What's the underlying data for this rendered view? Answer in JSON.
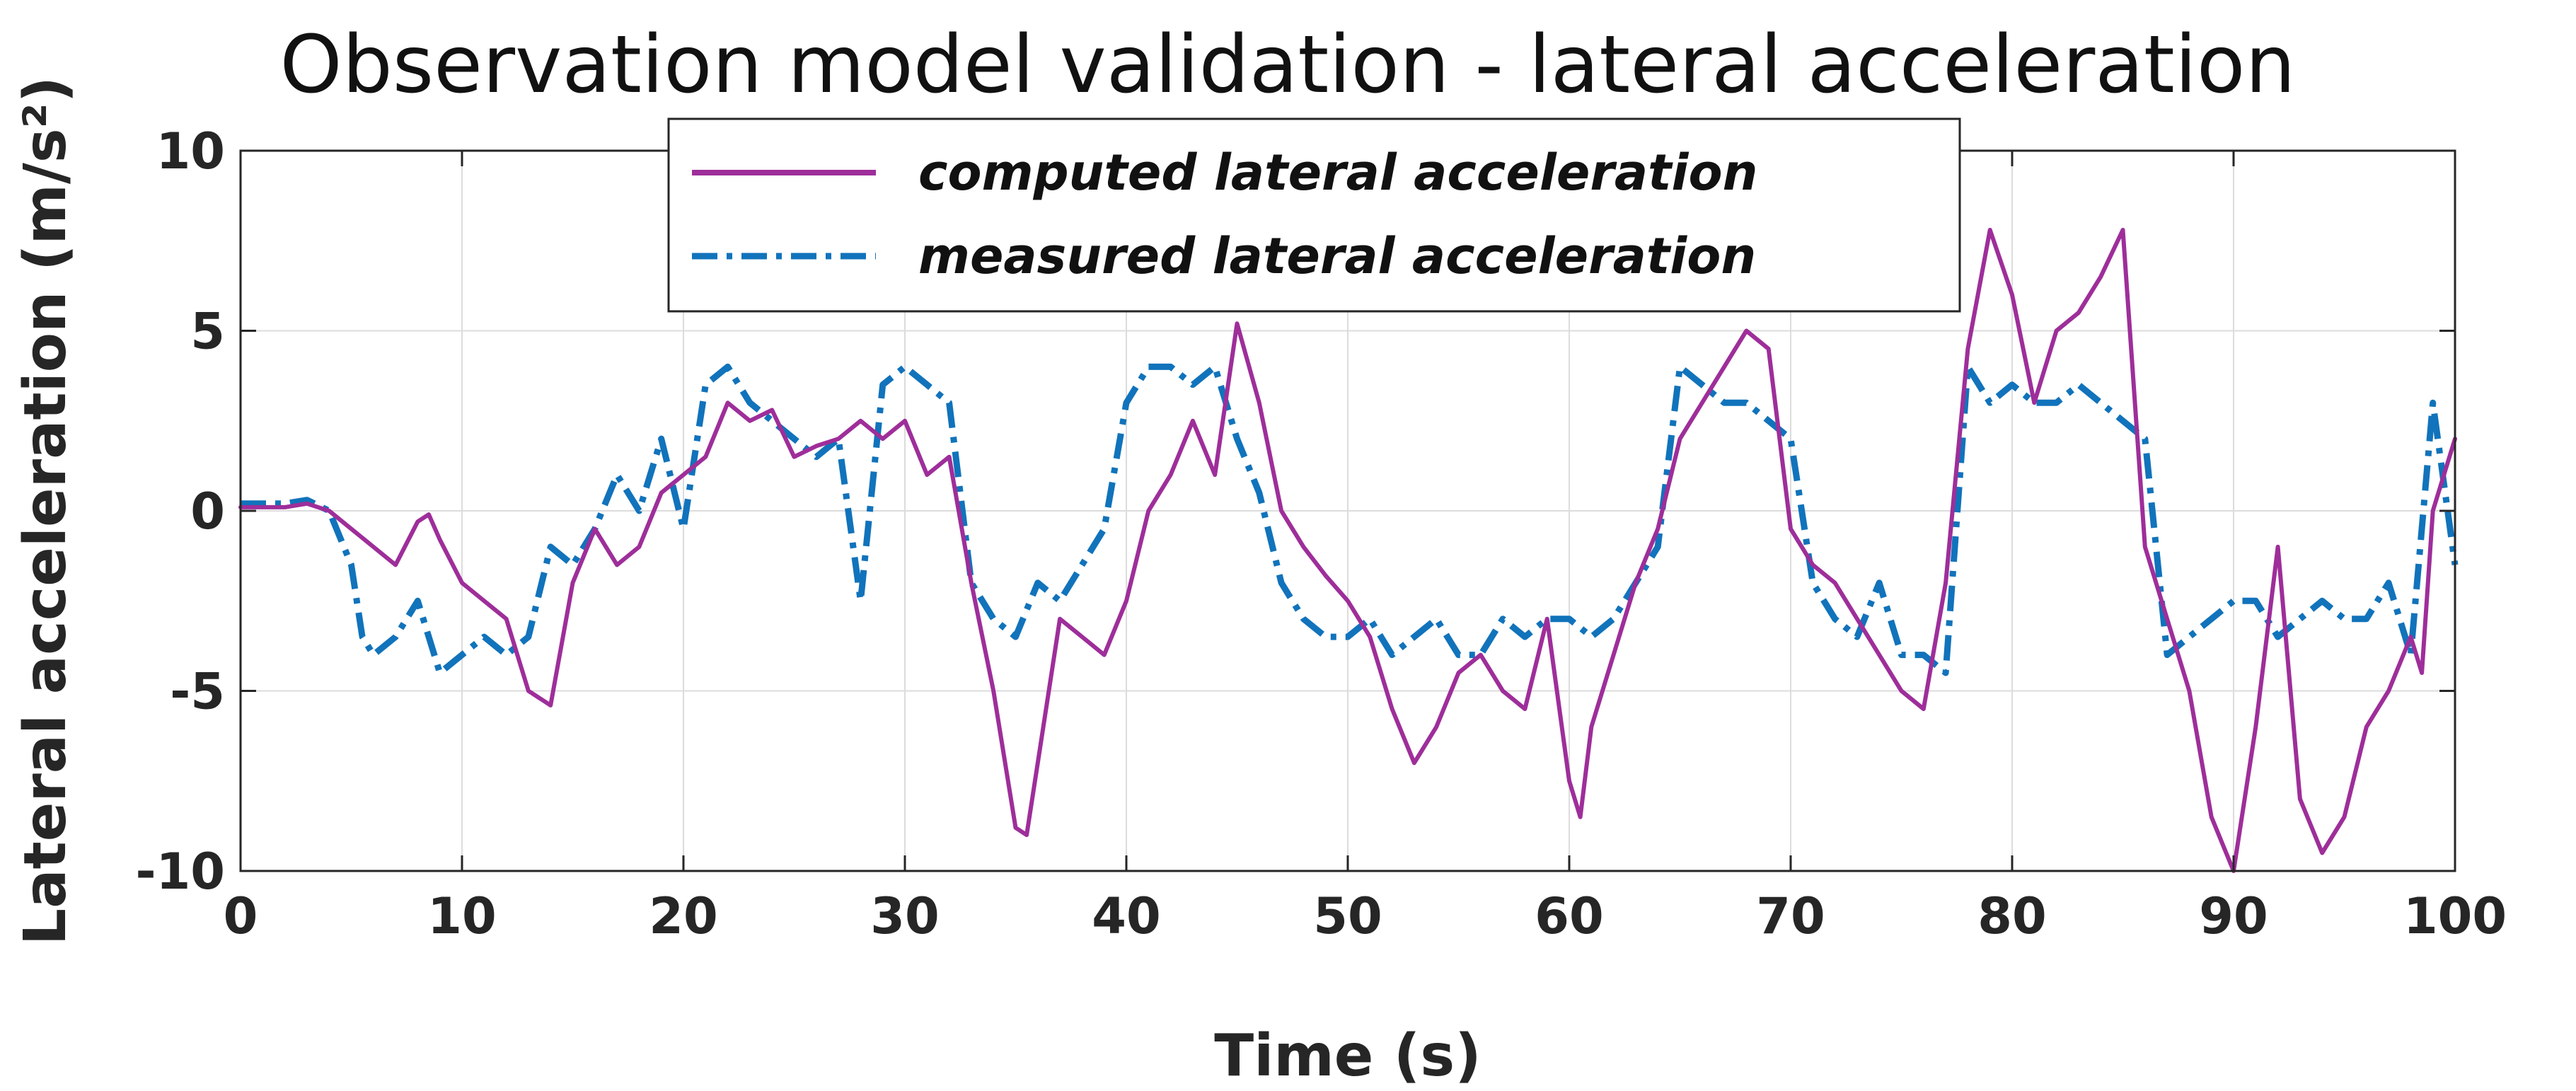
{
  "chart_data": {
    "type": "line",
    "title": "Observation model validation - lateral acceleration",
    "xlabel": "Time (s)",
    "ylabel": "Lateral acceleration (m/s²)",
    "xlim": [
      0,
      100
    ],
    "ylim": [
      -10,
      10
    ],
    "xticks": [
      0,
      10,
      20,
      30,
      40,
      50,
      60,
      70,
      80,
      90,
      100
    ],
    "yticks": [
      10,
      5,
      0,
      -5,
      -10
    ],
    "xtick_labels": [
      "0",
      "10",
      "20",
      "30",
      "40",
      "50",
      "60",
      "70",
      "80",
      "90",
      "100"
    ],
    "ytick_labels": [
      "10",
      "5",
      "0",
      "-5",
      "-10"
    ],
    "grid": true,
    "legend_position": "top-center",
    "series": [
      {
        "name": "computed lateral acceleration",
        "color": "#9e2e9a",
        "style": "solid",
        "x": [
          0,
          2,
          3,
          4,
          5,
          6,
          7,
          8,
          8.5,
          9,
          10,
          11,
          12,
          13,
          14,
          15,
          16,
          17,
          18,
          19,
          20,
          21,
          22,
          23,
          24,
          25,
          26,
          27,
          28,
          29,
          30,
          31,
          32,
          33,
          34,
          35,
          35.5,
          36,
          37,
          38,
          39,
          40,
          41,
          42,
          43,
          44,
          45,
          46,
          47,
          48,
          49,
          50,
          51,
          52,
          53,
          54,
          55,
          56,
          57,
          58,
          59,
          60,
          60.5,
          61,
          62,
          63,
          64,
          65,
          66,
          67,
          68,
          69,
          70,
          71,
          72,
          73,
          74,
          75,
          76,
          77,
          78,
          79,
          80,
          81,
          82,
          83,
          84,
          85,
          86,
          87,
          88,
          89,
          90,
          91,
          92,
          93,
          94,
          95,
          96,
          97,
          98,
          98.5,
          99,
          100
        ],
        "y": [
          0.1,
          0.1,
          0.2,
          0.0,
          -0.5,
          -1.0,
          -1.5,
          -0.3,
          -0.1,
          -0.8,
          -2.0,
          -2.5,
          -3.0,
          -5.0,
          -5.4,
          -2.0,
          -0.5,
          -1.5,
          -1.0,
          0.5,
          1.0,
          1.5,
          3.0,
          2.5,
          2.8,
          1.5,
          1.8,
          2.0,
          2.5,
          2.0,
          2.5,
          1.0,
          1.5,
          -2.0,
          -5.0,
          -8.8,
          -9.0,
          -7.0,
          -3.0,
          -3.5,
          -4.0,
          -2.5,
          0.0,
          1.0,
          2.5,
          1.0,
          5.2,
          3.0,
          0.0,
          -1.0,
          -1.8,
          -2.5,
          -3.5,
          -5.5,
          -7.0,
          -6.0,
          -4.5,
          -4.0,
          -5.0,
          -5.5,
          -3.0,
          -7.5,
          -8.5,
          -6.0,
          -4.0,
          -2.0,
          -0.5,
          2.0,
          3.0,
          4.0,
          5.0,
          4.5,
          -0.5,
          -1.5,
          -2.0,
          -3.0,
          -4.0,
          -5.0,
          -5.5,
          -2.0,
          4.5,
          7.8,
          6.0,
          3.0,
          5.0,
          5.5,
          6.5,
          7.8,
          -1.0,
          -3.0,
          -5.0,
          -8.5,
          -10.0,
          -6.0,
          -1.0,
          -8.0,
          -9.5,
          -8.5,
          -6.0,
          -5.0,
          -3.5,
          -4.5,
          0.0,
          2.0
        ]
      },
      {
        "name": "measured lateral acceleration",
        "color": "#1173bb",
        "style": "dashdot",
        "x": [
          0,
          2,
          3,
          4,
          5,
          5.5,
          6,
          7,
          8,
          9,
          10,
          11,
          12,
          13,
          14,
          15,
          16,
          17,
          18,
          19,
          20,
          21,
          22,
          23,
          24,
          25,
          26,
          27,
          28,
          29,
          30,
          31,
          32,
          33,
          34,
          35,
          36,
          37,
          38,
          39,
          40,
          41,
          42,
          43,
          44,
          45,
          46,
          47,
          48,
          49,
          50,
          51,
          52,
          53,
          54,
          55,
          56,
          57,
          58,
          59,
          60,
          61,
          62,
          63,
          64,
          65,
          66,
          67,
          68,
          69,
          70,
          71,
          72,
          73,
          74,
          75,
          76,
          77,
          78,
          79,
          80,
          81,
          82,
          83,
          84,
          85,
          86,
          87,
          88,
          89,
          90,
          91,
          92,
          93,
          94,
          95,
          96,
          97,
          98,
          99,
          100
        ],
        "y": [
          0.2,
          0.2,
          0.3,
          0.0,
          -1.5,
          -3.5,
          -4.0,
          -3.5,
          -2.5,
          -4.5,
          -4.0,
          -3.5,
          -4.0,
          -3.5,
          -1.0,
          -1.5,
          -0.5,
          1.0,
          0.0,
          2.0,
          -0.5,
          3.5,
          4.0,
          3.0,
          2.5,
          2.0,
          1.5,
          2.0,
          -2.5,
          3.5,
          4.0,
          3.5,
          3.0,
          -2.0,
          -3.0,
          -3.5,
          -2.0,
          -2.5,
          -1.5,
          -0.5,
          3.0,
          4.0,
          4.0,
          3.5,
          4.0,
          2.0,
          0.5,
          -2.0,
          -3.0,
          -3.5,
          -3.5,
          -3.0,
          -4.0,
          -3.5,
          -3.0,
          -4.0,
          -4.0,
          -3.0,
          -3.5,
          -3.0,
          -3.0,
          -3.5,
          -3.0,
          -2.0,
          -1.0,
          4.0,
          3.5,
          3.0,
          3.0,
          2.5,
          2.0,
          -2.0,
          -3.0,
          -3.5,
          -2.0,
          -4.0,
          -4.0,
          -4.5,
          4.0,
          3.0,
          3.5,
          3.0,
          3.0,
          3.5,
          3.0,
          2.5,
          2.0,
          -4.0,
          -3.5,
          -3.0,
          -2.5,
          -2.5,
          -3.5,
          -3.0,
          -2.5,
          -3.0,
          -3.0,
          -2.0,
          -4.0,
          3.0,
          -1.5
        ]
      }
    ]
  }
}
